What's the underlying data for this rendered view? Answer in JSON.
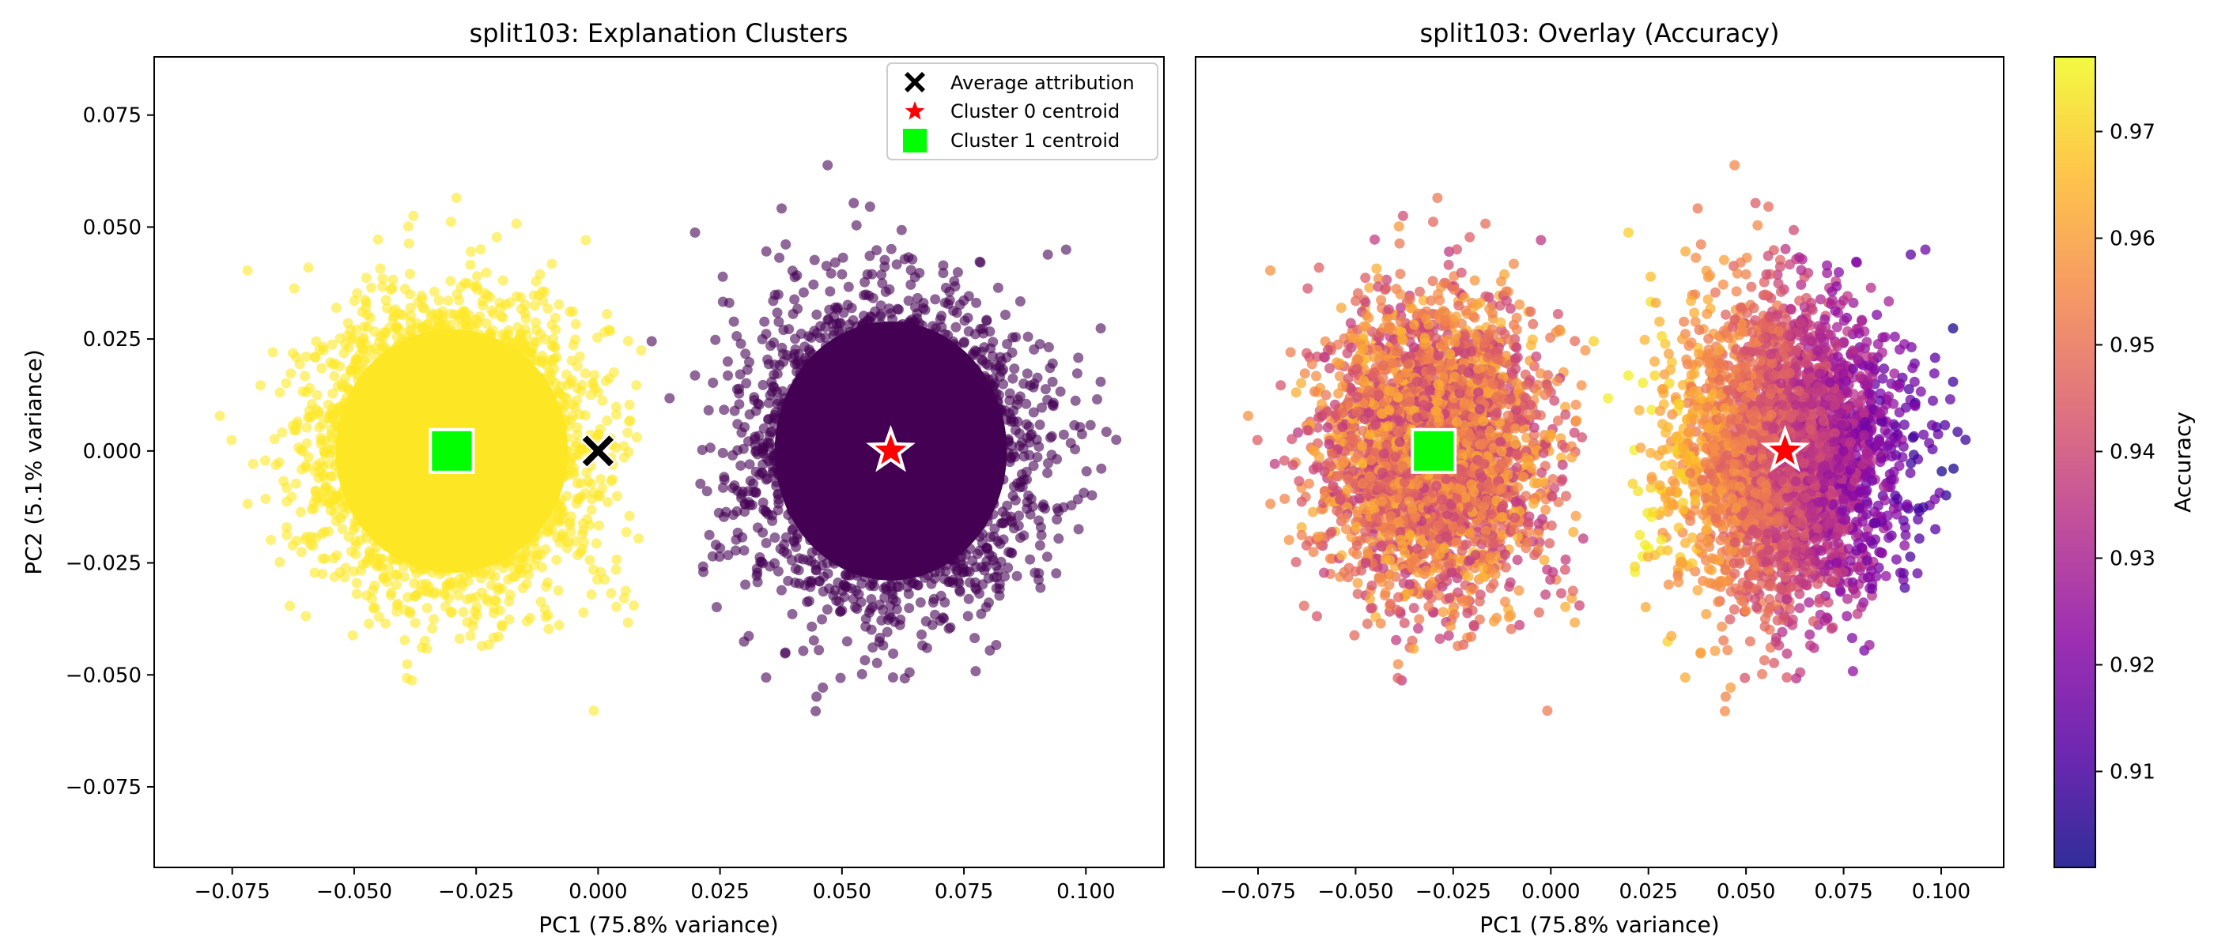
{
  "chart_data": [
    {
      "type": "scatter",
      "title": "split103: Explanation Clusters",
      "xlabel": "PC1 (75.8% variance)",
      "ylabel": "PC2 (5.1% variance)",
      "xlim": [
        -0.091,
        0.116
      ],
      "ylim": [
        -0.093,
        0.088
      ],
      "xticks": [
        -0.075,
        -0.05,
        -0.025,
        0.0,
        0.025,
        0.05,
        0.075,
        0.1
      ],
      "xtick_labels": [
        "−0.075",
        "−0.050",
        "−0.025",
        "0.000",
        "0.025",
        "0.050",
        "0.075",
        "0.100"
      ],
      "yticks": [
        -0.075,
        -0.05,
        -0.025,
        0.0,
        0.025,
        0.05,
        0.075
      ],
      "ytick_labels": [
        "−0.075",
        "−0.050",
        "−0.025",
        "0.000",
        "0.025",
        "0.050",
        "0.075"
      ],
      "legend_position": "top-right",
      "series": [
        {
          "name": "Cluster 0 points",
          "color": "#440154",
          "center": [
            0.06,
            0.0
          ],
          "spread": [
            0.014,
            0.017
          ],
          "range_x": [
            0.01,
            0.108
          ]
        },
        {
          "name": "Cluster 1 points",
          "color": "#fde725",
          "center": [
            -0.03,
            0.0
          ],
          "spread": [
            0.014,
            0.016
          ],
          "range_x": [
            -0.082,
            0.01
          ]
        }
      ],
      "markers": [
        {
          "label": "Average attribution",
          "x": 0.0,
          "y": 0.0,
          "marker": "X",
          "color": "#000000"
        },
        {
          "label": "Cluster 0 centroid",
          "x": 0.06,
          "y": 0.0,
          "marker": "star",
          "color": "#ff0000"
        },
        {
          "label": "Cluster 1 centroid",
          "x": -0.03,
          "y": 0.0,
          "marker": "square",
          "color": "#00ff00"
        }
      ]
    },
    {
      "type": "scatter",
      "title": "split103: Overlay (Accuracy)",
      "xlabel": "PC1 (75.8% variance)",
      "xlim": [
        -0.091,
        0.116
      ],
      "ylim": [
        -0.093,
        0.088
      ],
      "xticks": [
        -0.075,
        -0.05,
        -0.025,
        0.0,
        0.025,
        0.05,
        0.075,
        0.1
      ],
      "xtick_labels": [
        "−0.075",
        "−0.050",
        "−0.025",
        "0.000",
        "0.025",
        "0.050",
        "0.075",
        "0.100"
      ],
      "colormap": "plasma",
      "colorbar": {
        "label": "Accuracy",
        "range": [
          0.901,
          0.977
        ],
        "ticks": [
          0.91,
          0.92,
          0.93,
          0.94,
          0.95,
          0.96,
          0.97
        ],
        "tick_labels": [
          "0.91",
          "0.92",
          "0.93",
          "0.94",
          "0.95",
          "0.96",
          "0.97"
        ]
      },
      "series": [
        {
          "name": "Cluster 0 points",
          "center": [
            0.06,
            0.0
          ],
          "accuracy_range": [
            0.905,
            0.965
          ]
        },
        {
          "name": "Cluster 1 points",
          "center": [
            -0.03,
            0.0
          ],
          "accuracy_range": [
            0.935,
            0.965
          ]
        }
      ],
      "markers": [
        {
          "label": "Cluster 0 centroid",
          "x": 0.06,
          "y": 0.0,
          "marker": "star",
          "color": "#ff0000"
        },
        {
          "label": "Cluster 1 centroid",
          "x": -0.03,
          "y": 0.0,
          "marker": "square",
          "color": "#00ff00"
        }
      ]
    }
  ]
}
